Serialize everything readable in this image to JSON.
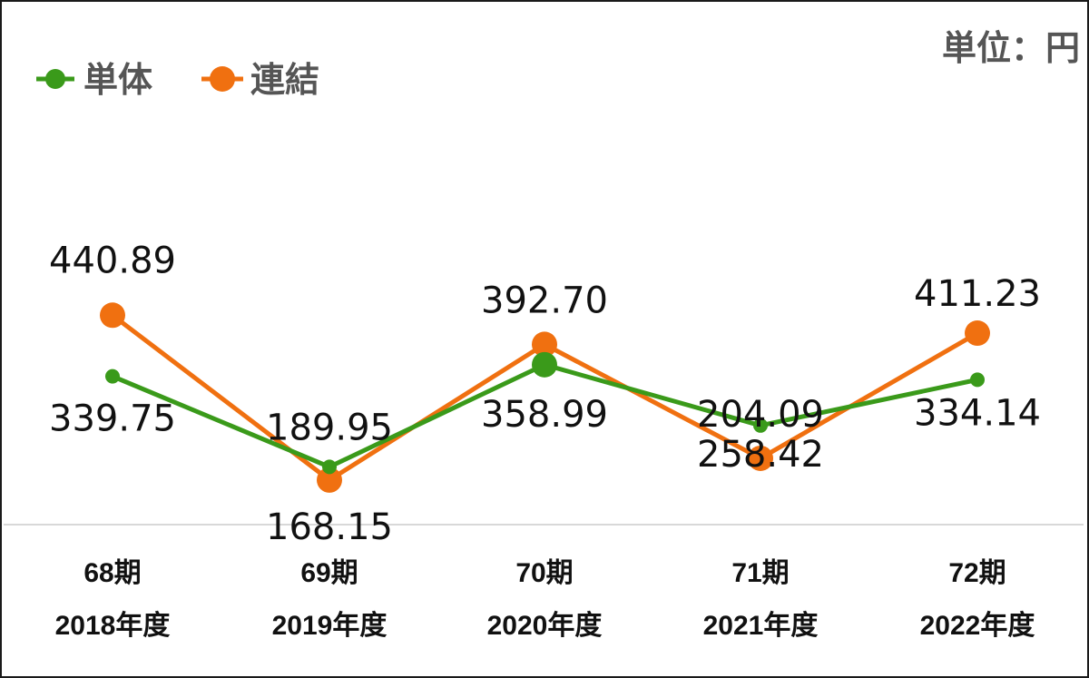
{
  "unit_label": "単位：円",
  "chart_data": {
    "type": "line",
    "categories": [
      [
        "68期",
        "2018年度"
      ],
      [
        "69期",
        "2019年度"
      ],
      [
        "70期",
        "2020年度"
      ],
      [
        "71期",
        "2021年度"
      ],
      [
        "72期",
        "2022年度"
      ]
    ],
    "series": [
      {
        "name": "単体",
        "color": "#3a9a1a",
        "values": [
          339.75,
          189.95,
          358.99,
          258.42,
          334.14
        ]
      },
      {
        "name": "連結",
        "color": "#f07010",
        "values": [
          440.89,
          168.15,
          392.7,
          204.09,
          411.23
        ]
      }
    ],
    "value_labels": {
      "単体": [
        "339.75",
        "189.95",
        "358.99",
        "258.42",
        "334.14"
      ],
      "連結": [
        "440.89",
        "168.15",
        "392.70",
        "204.09",
        "411.23"
      ]
    },
    "ylim": [
      100,
      500
    ],
    "grid": false,
    "legend": "top-left"
  }
}
